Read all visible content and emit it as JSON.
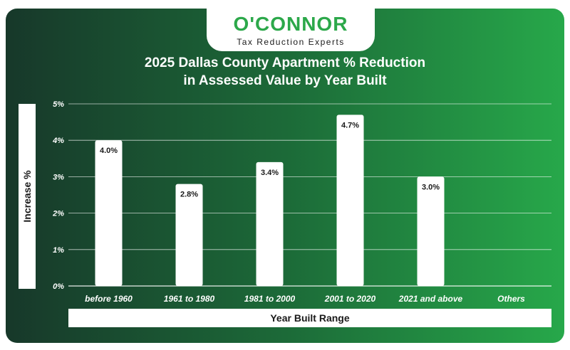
{
  "logo": {
    "wordmark": "O'CONNOR",
    "tagline": "Tax Reduction Experts"
  },
  "colors": {
    "accent": "#2ca84a",
    "bar": "#ffffff",
    "gridline": "#ffffff"
  },
  "chart_data": {
    "type": "bar",
    "title": "2025 Dallas County Apartment % Reduction in Assessed Value by Year Built",
    "title_lines": [
      "2025 Dallas County Apartment % Reduction",
      "in Assessed Value by Year Built"
    ],
    "xlabel": "Year Built Range",
    "ylabel": "Increase %",
    "categories": [
      "before 1960",
      "1961 to 1980",
      "1981 to 2000",
      "2001 to 2020",
      "2021 and above",
      "Others"
    ],
    "values": [
      4.0,
      2.8,
      3.4,
      4.7,
      3.0,
      null
    ],
    "data_labels": [
      "4.0%",
      "2.8%",
      "3.4%",
      "4.7%",
      "3.0%",
      ""
    ],
    "yticks": [
      0,
      1,
      2,
      3,
      4,
      5
    ],
    "ytick_labels": [
      "0%",
      "1%",
      "2%",
      "3%",
      "4%",
      "5%"
    ],
    "ylim": [
      0,
      5
    ],
    "grid": true,
    "legend": "none"
  }
}
